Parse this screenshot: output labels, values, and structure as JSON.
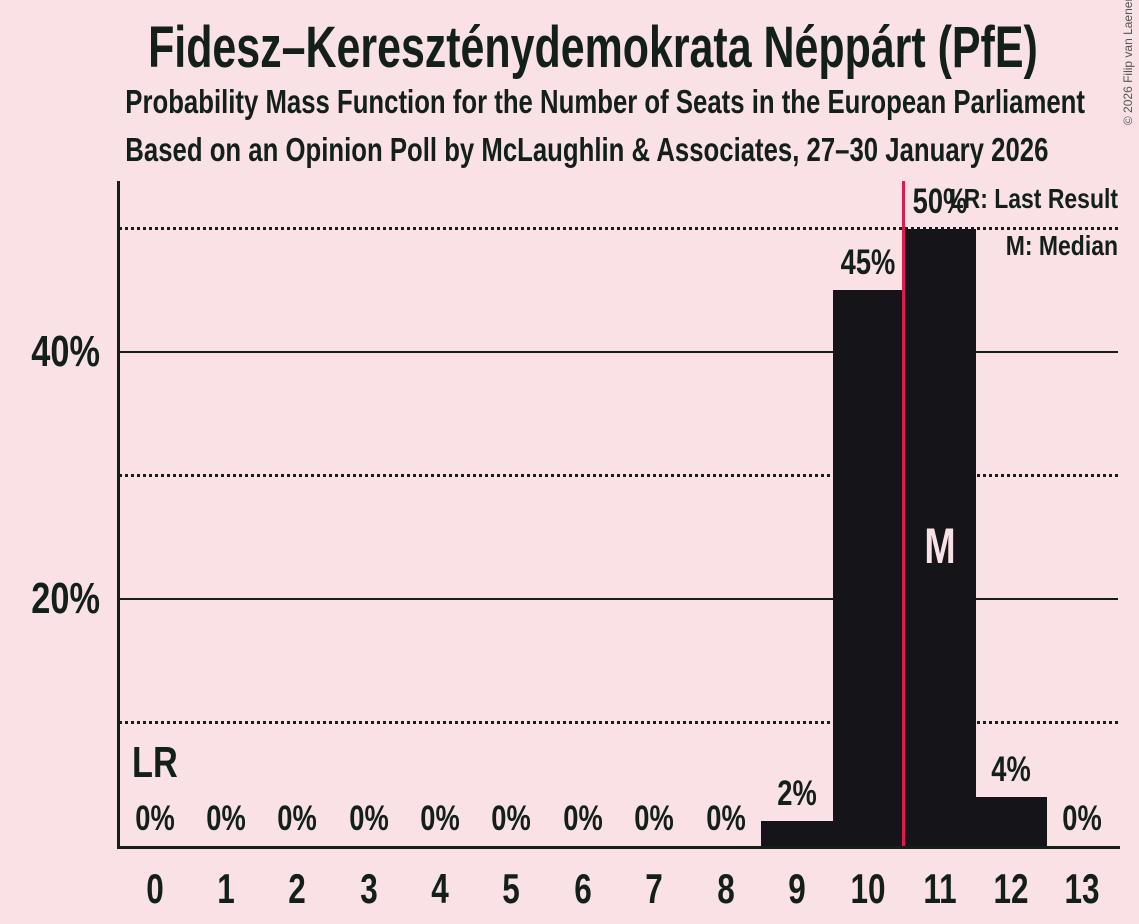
{
  "header": {
    "title": "Fidesz–Kereszténydemokrata Néppárt (PfE)",
    "subtitle1": "Probability Mass Function for the Number of Seats in the European Parliament",
    "subtitle2": "Based on an Opinion Poll by McLaughlin & Associates, 27–30 January 2026"
  },
  "copyright": "© 2026 Filip van Laenen",
  "legend": {
    "last_result": "LR: Last Result",
    "median": "M: Median"
  },
  "annotations": {
    "last_result_marker": "LR",
    "median_marker": "M"
  },
  "chart_data": {
    "type": "bar",
    "title": "Fidesz–Kereszténydemokrata Néppárt (PfE)",
    "xlabel": "",
    "ylabel": "",
    "categories": [
      "0",
      "1",
      "2",
      "3",
      "4",
      "5",
      "6",
      "7",
      "8",
      "9",
      "10",
      "11",
      "12",
      "13"
    ],
    "values": [
      0,
      0,
      0,
      0,
      0,
      0,
      0,
      0,
      0,
      2,
      45,
      50,
      4,
      0
    ],
    "value_labels": [
      "0%",
      "0%",
      "0%",
      "0%",
      "0%",
      "0%",
      "0%",
      "0%",
      "0%",
      "2%",
      "45%",
      "50%",
      "4%",
      "0%"
    ],
    "ylim": [
      0,
      54
    ],
    "y_solid_ticks": [
      {
        "value": 20,
        "label": "20%"
      },
      {
        "value": 40,
        "label": "40%"
      }
    ],
    "y_dotted_gridlines": [
      10,
      30,
      50
    ],
    "median_category": "11",
    "last_result_between_categories": [
      "10",
      "11"
    ],
    "grid": true,
    "legend_position": "top-right",
    "colors": {
      "background": "#fae1e6",
      "text": "#132019",
      "bar": "#141419",
      "last_result_line": "#e01a50",
      "copyright_text": "#50584f"
    }
  }
}
